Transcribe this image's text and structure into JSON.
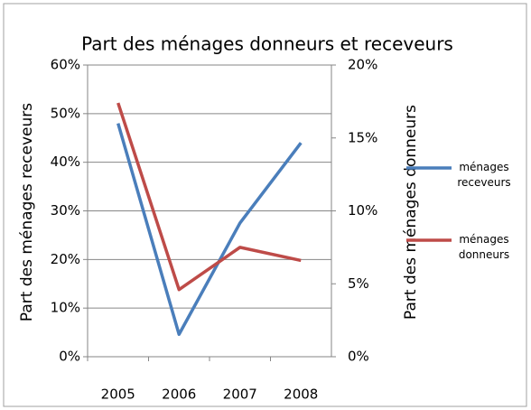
{
  "chart_data": {
    "type": "line",
    "title": "Part des ménages donneurs et receveurs",
    "categories": [
      "2005",
      "2006",
      "2007",
      "2008"
    ],
    "ylabel": "Part des ménages receveurs",
    "y2label": "Part des ménages donneurs",
    "ylim": [
      0,
      60
    ],
    "yticks": [
      {
        "value": 0,
        "label": "0%"
      },
      {
        "value": 10,
        "label": "10%"
      },
      {
        "value": 20,
        "label": "20%"
      },
      {
        "value": 30,
        "label": "30%"
      },
      {
        "value": 40,
        "label": "40%"
      },
      {
        "value": 50,
        "label": "50%"
      },
      {
        "value": 60,
        "label": "60%"
      }
    ],
    "y2lim": [
      0,
      20
    ],
    "y2ticks": [
      {
        "value": 0,
        "label": "0%"
      },
      {
        "value": 5,
        "label": "5%"
      },
      {
        "value": 10,
        "label": "10%"
      },
      {
        "value": 15,
        "label": "15%"
      },
      {
        "value": 20,
        "label": "20%"
      }
    ],
    "grid": true,
    "legend": "right",
    "series": [
      {
        "name": "ménages receveurs",
        "color": "#4a7ebb",
        "values": [
          48,
          4.6,
          27.5,
          44
        ]
      },
      {
        "name": "ménages donneurs",
        "color": "#be4b48",
        "axis": "y2",
        "values": [
          17.4,
          4.6,
          7.5,
          6.6
        ]
      }
    ]
  }
}
